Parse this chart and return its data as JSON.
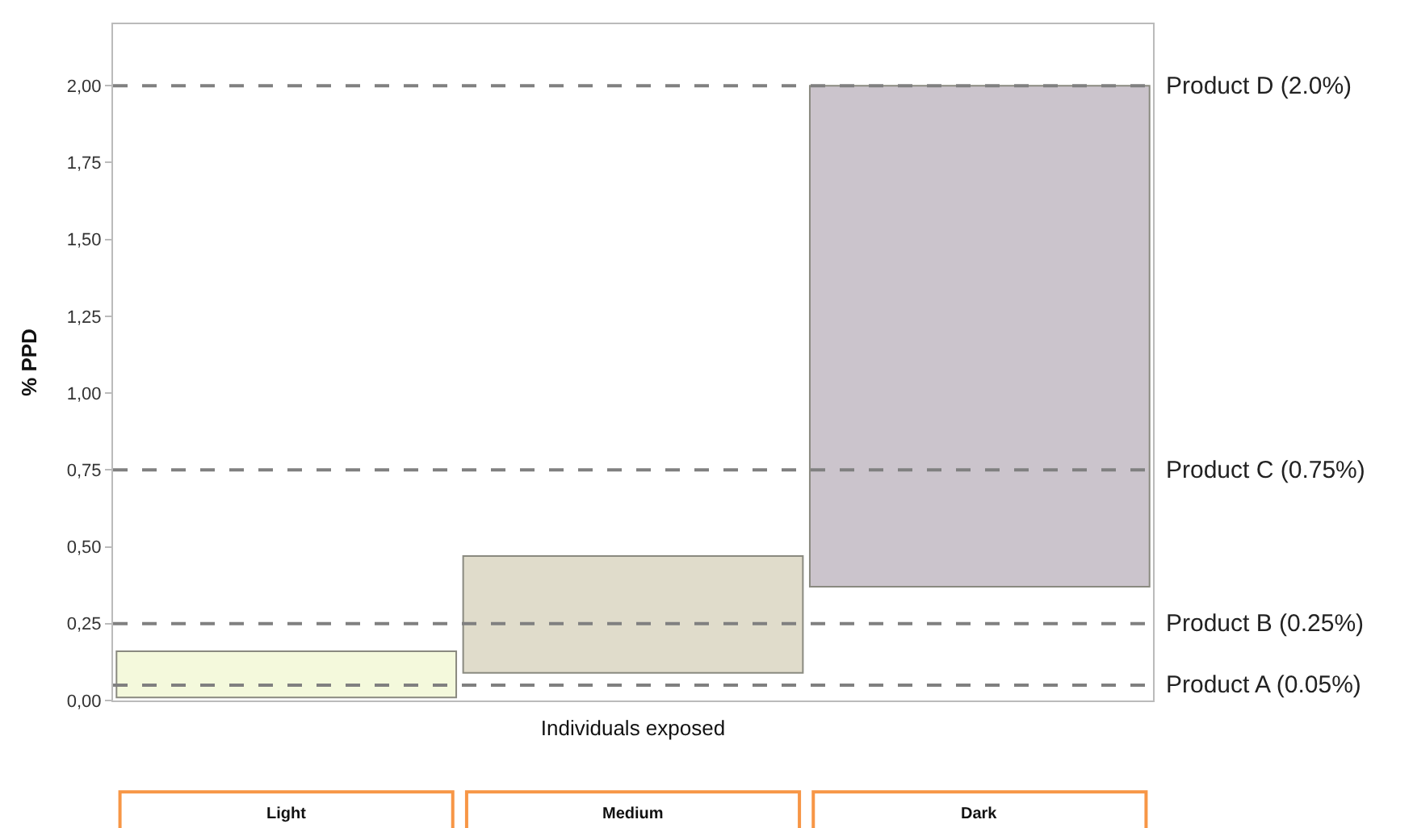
{
  "chart_data": {
    "type": "bar",
    "ylabel": "% PPD",
    "xlabel": "Individuals exposed",
    "categories": [
      "Light",
      "Medium",
      "Dark"
    ],
    "values": [
      0.15,
      0.38,
      1.63
    ],
    "base": [
      0.01,
      0.09,
      0.37
    ],
    "colors": [
      "#f4f9dc",
      "#e0dccb",
      "#cbc4cc"
    ],
    "ylim": [
      0,
      2.2
    ],
    "yticks": [
      {
        "value": 0,
        "label": "0,00"
      },
      {
        "value": 0.25,
        "label": "0,25"
      },
      {
        "value": 0.5,
        "label": "0,50"
      },
      {
        "value": 0.75,
        "label": "0,75"
      },
      {
        "value": 1,
        "label": "1,00"
      },
      {
        "value": 1.25,
        "label": "1,25"
      },
      {
        "value": 1.5,
        "label": "1,50"
      },
      {
        "value": 1.75,
        "label": "1,75"
      },
      {
        "value": 2,
        "label": "2,00"
      }
    ],
    "grid": false,
    "ref_lines": [
      {
        "axis": "y",
        "value": 2.0,
        "label": "Product D (2.0%)",
        "color": "#808080",
        "line_style": "dashed"
      },
      {
        "axis": "y",
        "value": 0.75,
        "label": "Product C (0.75%)",
        "color": "#808080",
        "line_style": "dashed"
      },
      {
        "axis": "y",
        "value": 0.25,
        "label": "Product B (0.25%)",
        "color": "#808080",
        "line_style": "dashed"
      },
      {
        "axis": "y",
        "value": 0.05,
        "label": "Product A (0.05%)",
        "color": "#808080",
        "line_style": "dashed"
      }
    ]
  }
}
